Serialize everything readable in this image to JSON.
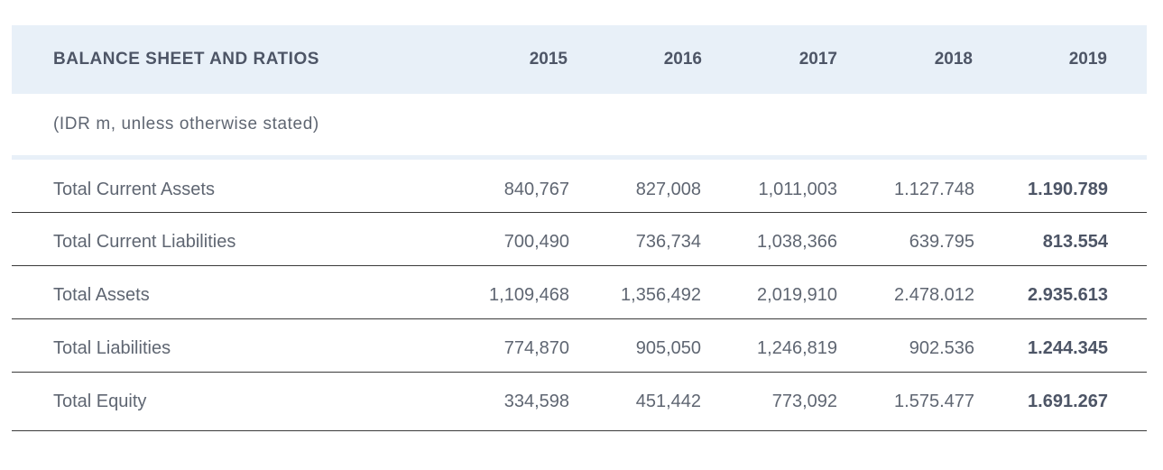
{
  "table": {
    "title": "BALANCE SHEET AND RATIOS",
    "subtitle": "(IDR m, unless otherwise stated)",
    "years": [
      "2015",
      "2016",
      "2017",
      "2018",
      "2019"
    ],
    "rows": [
      {
        "label": "Total Current Assets",
        "values": [
          "840,767",
          "827,008",
          "1,011,003",
          "1.127.748",
          "1.190.789"
        ]
      },
      {
        "label": "Total Current Liabilities",
        "values": [
          "700,490",
          "736,734",
          "1,038,366",
          "639.795",
          "813.554"
        ]
      },
      {
        "label": "Total Assets",
        "values": [
          "1,109,468",
          "1,356,492",
          "2,019,910",
          "2.478.012",
          "2.935.613"
        ]
      },
      {
        "label": "Total Liabilities",
        "values": [
          "774,870",
          "905,050",
          "1,246,819",
          "902.536",
          "1.244.345"
        ]
      },
      {
        "label": "Total Equity",
        "values": [
          "334,598",
          "451,442",
          "773,092",
          "1.575.477",
          "1.691.267"
        ]
      }
    ]
  },
  "colors": {
    "header_bg": "#e8f0f8",
    "header_text": "#4d5566",
    "body_text": "#5f6672",
    "divider": "#3a3a3a"
  }
}
